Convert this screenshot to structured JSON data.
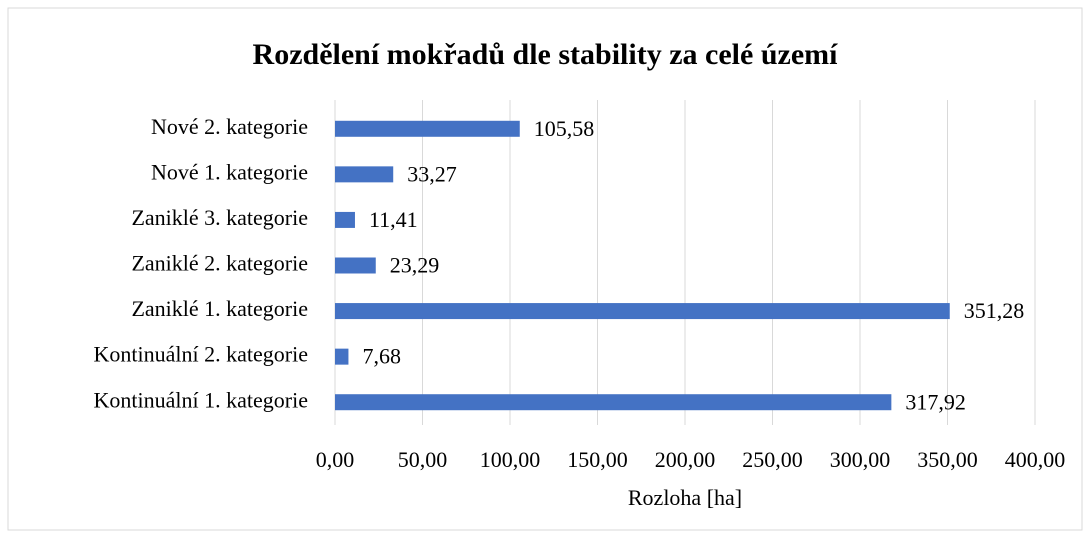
{
  "chart_data": {
    "type": "bar",
    "orientation": "horizontal",
    "title": "Rozdělení mokřadů dle stability za celé území",
    "x_label": "Rozloha [ha]",
    "categories": [
      "Nové 2. kategorie",
      "Nové 1. kategorie",
      "Zaniklé 3. kategorie",
      "Zaniklé 2. kategorie",
      "Zaniklé 1. kategorie",
      "Kontinuální 2. kategorie",
      "Kontinuální 1. kategorie"
    ],
    "values": [
      105.58,
      33.27,
      11.41,
      23.29,
      351.28,
      7.68,
      317.92
    ],
    "value_labels": [
      "105,58",
      "33,27",
      "11,41",
      "23,29",
      "351,28",
      "7,68",
      "317,92"
    ],
    "color": "#4472c4",
    "xlim": [
      0,
      400
    ],
    "xticks": [
      {
        "value": 0,
        "label": "0,00"
      },
      {
        "value": 50,
        "label": "50,00"
      },
      {
        "value": 100,
        "label": "100,00"
      },
      {
        "value": 150,
        "label": "150,00"
      },
      {
        "value": 200,
        "label": "200,00"
      },
      {
        "value": 250,
        "label": "250,00"
      },
      {
        "value": 300,
        "label": "300,00"
      },
      {
        "value": 350,
        "label": "350,00"
      },
      {
        "value": 400,
        "label": "400,00"
      }
    ],
    "grid": true
  }
}
